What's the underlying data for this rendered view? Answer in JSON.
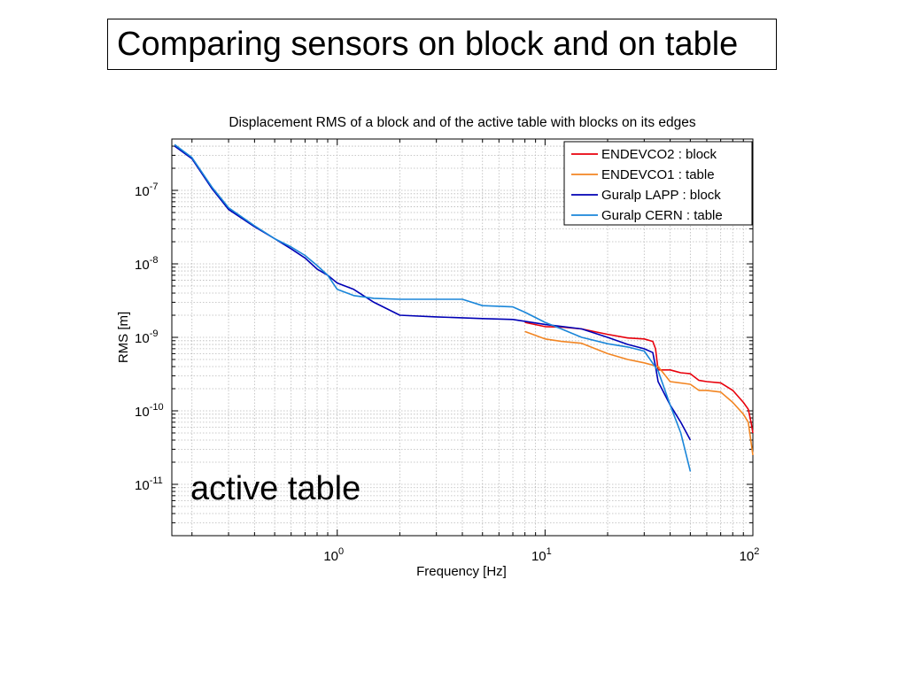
{
  "slide": {
    "title": "Comparing sensors on block and on table",
    "annotation": "active table"
  },
  "chart_data": {
    "type": "line",
    "title": "Displacement RMS of a block and of the active table with blocks on its edges",
    "xlabel": "Frequency [Hz]",
    "ylabel": "RMS [m]",
    "xscale": "log",
    "yscale": "log",
    "xlim": [
      0.16,
      100
    ],
    "ylim": [
      2e-12,
      5e-07
    ],
    "grid": true,
    "legend_position": "top-right",
    "x_ticks": [
      {
        "value": 1,
        "base": "10",
        "exp": "0"
      },
      {
        "value": 10,
        "base": "10",
        "exp": "1"
      },
      {
        "value": 100,
        "base": "10",
        "exp": "2"
      }
    ],
    "y_ticks": [
      {
        "value": 1e-07,
        "base": "10",
        "exp": "-7"
      },
      {
        "value": 1e-08,
        "base": "10",
        "exp": "-8"
      },
      {
        "value": 1e-09,
        "base": "10",
        "exp": "-9"
      },
      {
        "value": 1e-10,
        "base": "10",
        "exp": "-10"
      },
      {
        "value": 1e-11,
        "base": "10",
        "exp": "-11"
      }
    ],
    "series": [
      {
        "name": "ENDEVCO2 : block",
        "color": "#e8000b",
        "x": [
          8,
          10,
          12,
          15,
          20,
          25,
          30,
          33,
          34,
          35,
          40,
          45,
          50,
          55,
          60,
          70,
          80,
          90,
          95,
          98,
          100
        ],
        "y": [
          1.6e-09,
          1.4e-09,
          1.38e-09,
          1.3e-09,
          1.1e-09,
          9.8e-10,
          9.5e-10,
          8.8e-10,
          7e-10,
          3.6e-10,
          3.6e-10,
          3.3e-10,
          3.2e-10,
          2.6e-10,
          2.5e-10,
          2.4e-10,
          1.9e-10,
          1.3e-10,
          1.05e-10,
          7e-11,
          5e-11
        ]
      },
      {
        "name": "ENDEVCO1 : table",
        "color": "#f28522",
        "x": [
          8,
          10,
          12,
          15,
          20,
          25,
          30,
          35,
          38,
          40,
          50,
          55,
          60,
          70,
          80,
          90,
          95,
          100
        ],
        "y": [
          1.2e-09,
          9.5e-10,
          8.8e-10,
          8.3e-10,
          6e-10,
          5e-10,
          4.5e-10,
          4e-10,
          3e-10,
          2.5e-10,
          2.3e-10,
          1.9e-10,
          1.9e-10,
          1.8e-10,
          1.3e-10,
          9e-11,
          7e-11,
          2.5e-11
        ]
      },
      {
        "name": "Guralp LAPP : block",
        "color": "#0000b5",
        "x": [
          0.165,
          0.2,
          0.25,
          0.3,
          0.4,
          0.5,
          0.6,
          0.7,
          0.8,
          0.9,
          1.0,
          1.2,
          1.5,
          2,
          3,
          5,
          7,
          10,
          15,
          20,
          25,
          30,
          33,
          34,
          35,
          40,
          45,
          50
        ],
        "y": [
          4e-07,
          2.7e-07,
          1.05e-07,
          5.5e-08,
          3.2e-08,
          2.2e-08,
          1.6e-08,
          1.2e-08,
          8.5e-09,
          7e-09,
          5.5e-09,
          4.5e-09,
          3e-09,
          2e-09,
          1.9e-09,
          1.8e-09,
          1.75e-09,
          1.5e-09,
          1.3e-09,
          1e-09,
          8e-10,
          7e-10,
          6.2e-10,
          4e-10,
          2.5e-10,
          1.2e-10,
          7e-11,
          4e-11
        ]
      },
      {
        "name": "Guralp CERN : table",
        "color": "#1a86d9",
        "x": [
          0.165,
          0.2,
          0.25,
          0.3,
          0.4,
          0.5,
          0.6,
          0.7,
          0.8,
          0.9,
          1.0,
          1.2,
          1.5,
          2,
          3,
          4,
          5,
          7,
          8,
          10,
          12,
          15,
          20,
          25,
          30,
          35,
          40,
          45,
          50
        ],
        "y": [
          4.2e-07,
          2.8e-07,
          1.1e-07,
          5.8e-08,
          3.3e-08,
          2.2e-08,
          1.7e-08,
          1.3e-08,
          9.5e-09,
          7e-09,
          4.5e-09,
          3.7e-09,
          3.4e-09,
          3.3e-09,
          3.3e-09,
          3.3e-09,
          2.7e-09,
          2.6e-09,
          2.2e-09,
          1.6e-09,
          1.3e-09,
          1e-09,
          8.2e-10,
          7.4e-10,
          6.5e-10,
          3.5e-10,
          1.2e-10,
          5e-11,
          1.5e-11
        ]
      }
    ]
  }
}
